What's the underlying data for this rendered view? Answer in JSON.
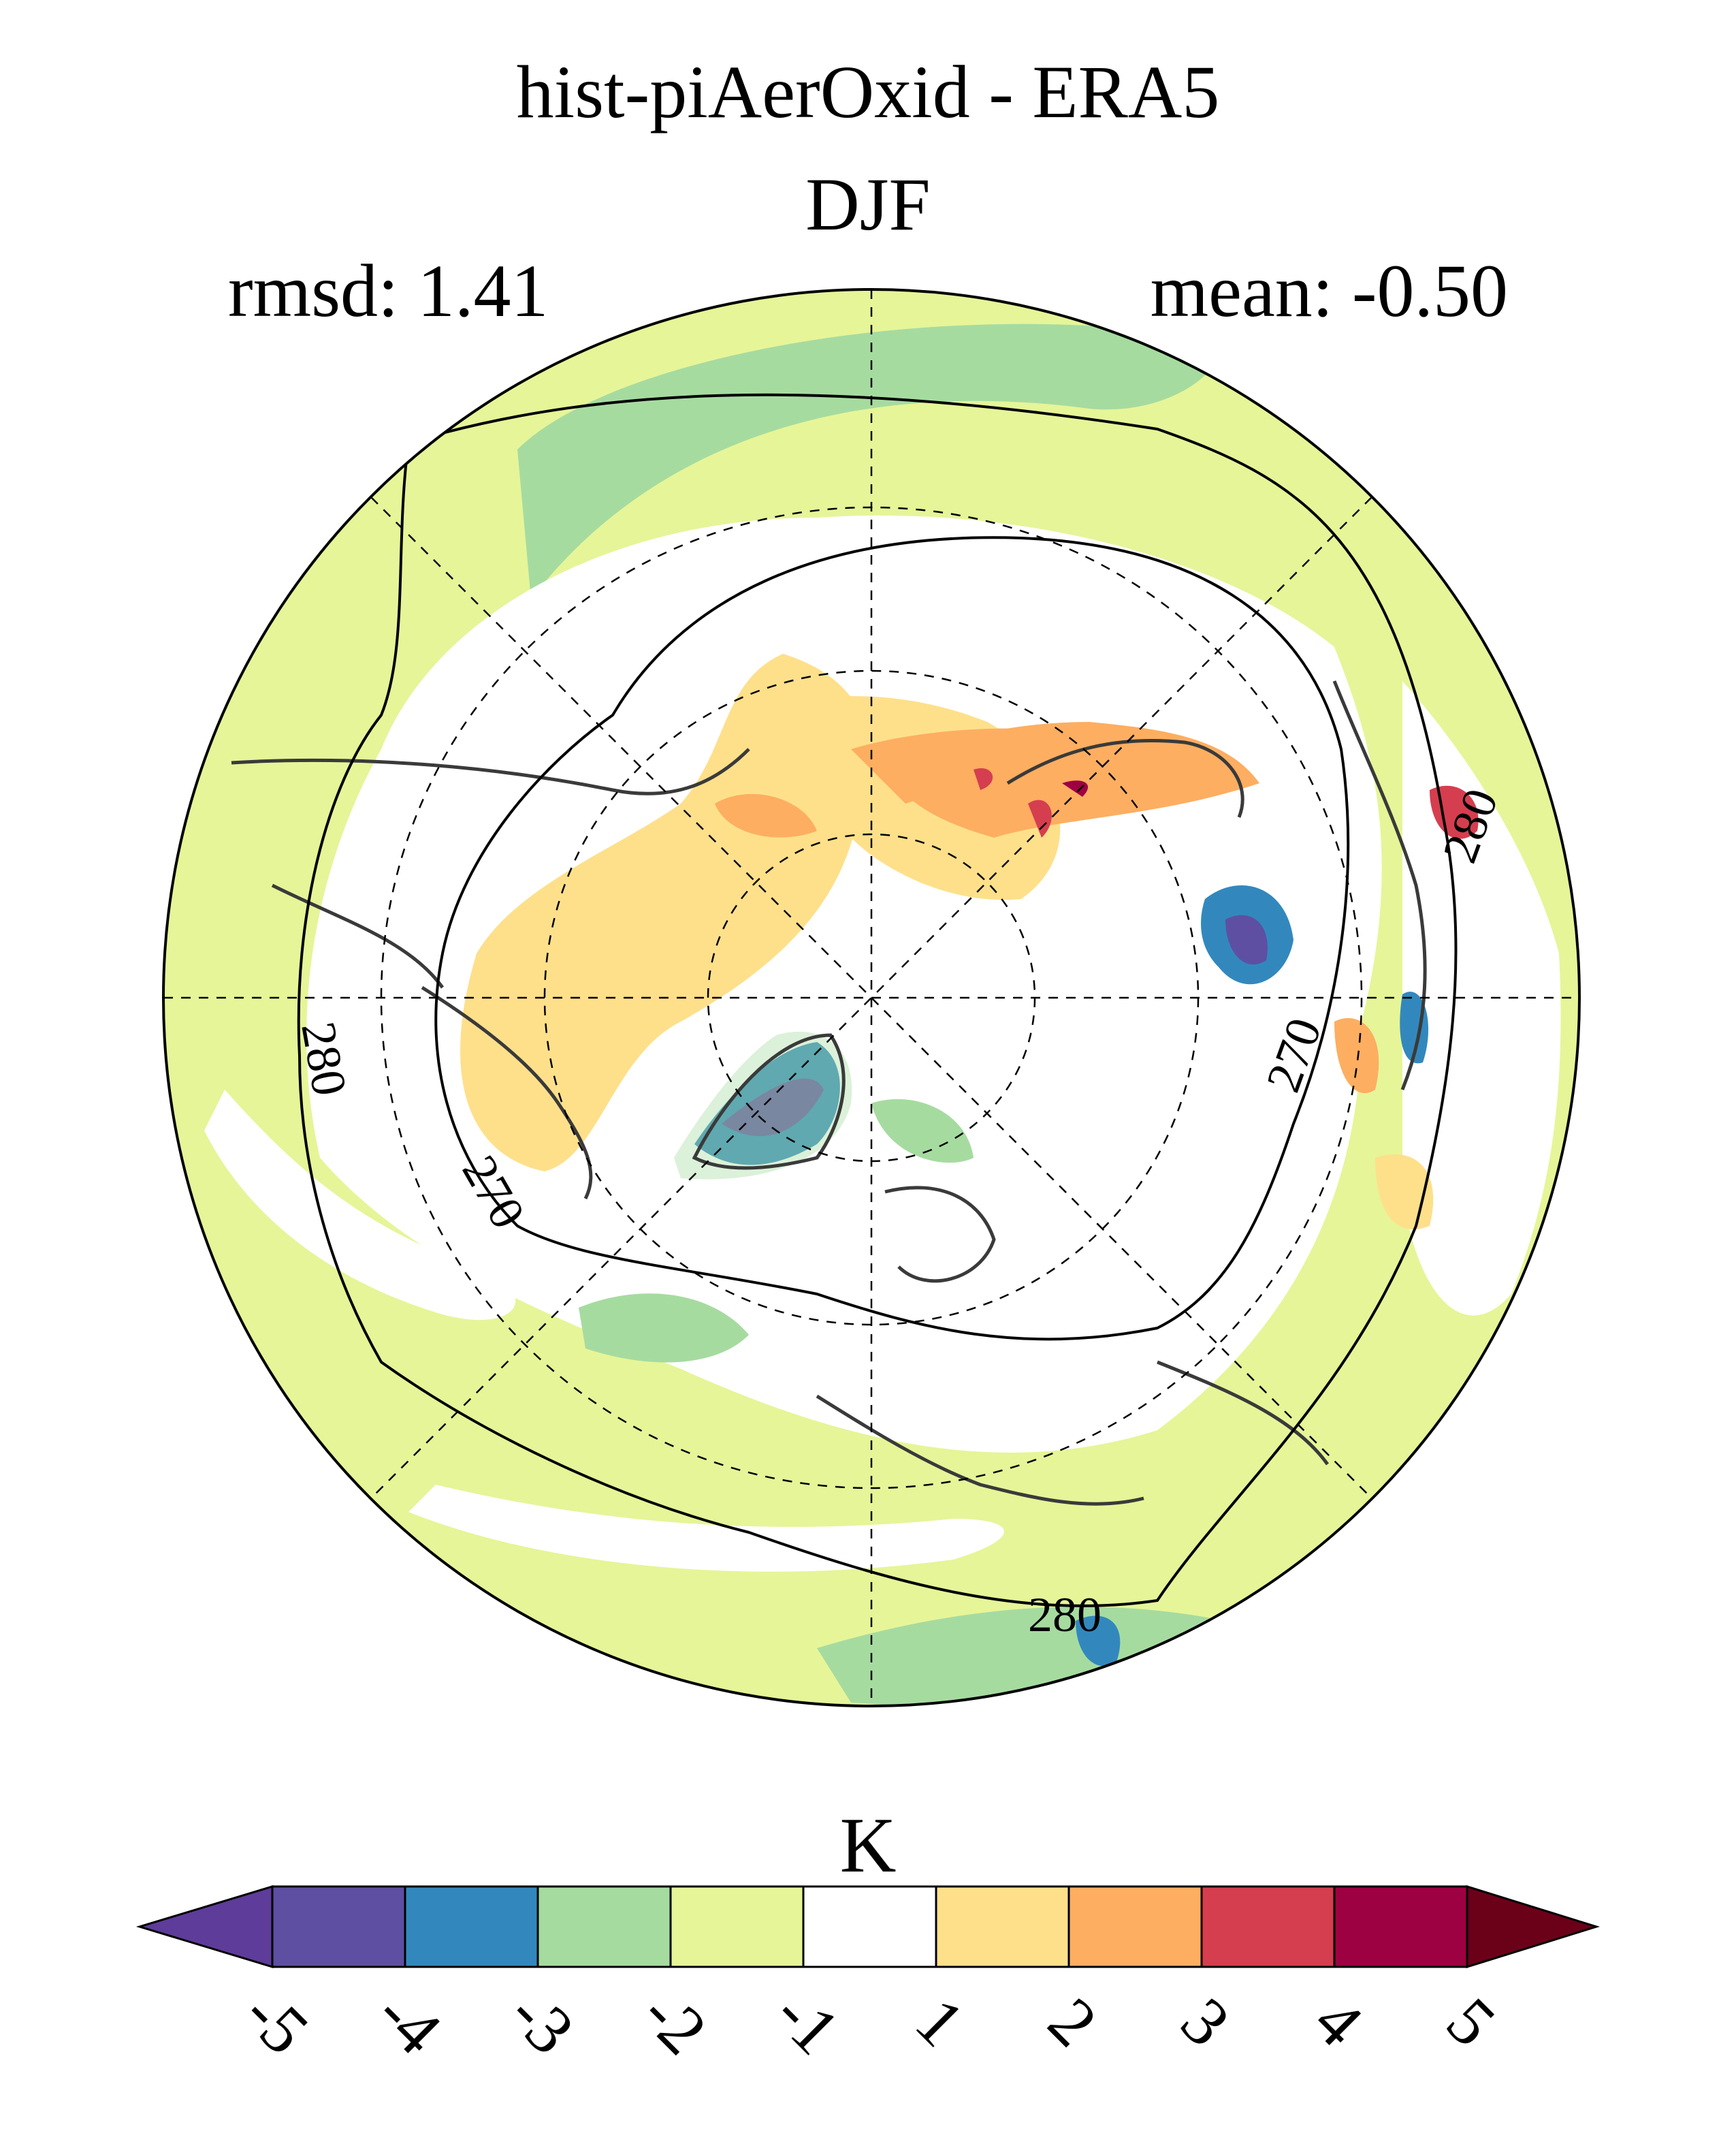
{
  "header": {
    "title": "hist-piAerOxid - ERA5",
    "season": "DJF",
    "rmsd": "rmsd: 1.41",
    "mean": "mean: -0.50"
  },
  "map": {
    "projection": "north-polar-stereographic",
    "contour_labels": [
      "280",
      "270",
      "270",
      "270",
      "280",
      "280"
    ],
    "coastline_color": "#3a3a3a"
  },
  "colorbar": {
    "unit": "K",
    "ticks": [
      "-5",
      "-4",
      "-3",
      "-2",
      "-1",
      "1",
      "2",
      "3",
      "4",
      "5"
    ],
    "colors": [
      "#5e3c99",
      "#5e4fa2",
      "#3288bd",
      "#a6dba0",
      "#e6f598",
      "#ffffff",
      "#fee08b",
      "#fdae61",
      "#d53e4f",
      "#9e0142",
      "#6b0019"
    ]
  }
}
